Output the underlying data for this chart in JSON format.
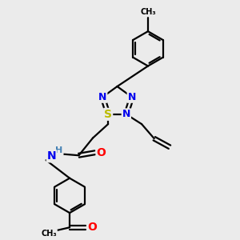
{
  "bg_color": "#ebebeb",
  "bond_color": "#000000",
  "bond_width": 1.6,
  "atom_colors": {
    "N": "#0000ee",
    "O": "#ff0000",
    "S": "#bbbb00",
    "H": "#4682b4",
    "C": "#000000"
  },
  "font_size": 9,
  "ring_r": 0.62,
  "tri_r": 0.55
}
